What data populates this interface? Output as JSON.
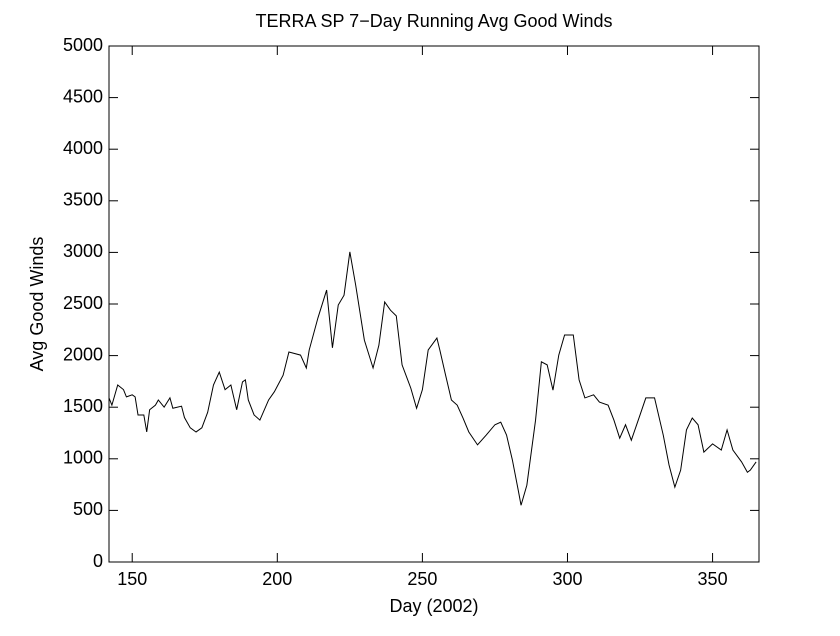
{
  "chart_data": {
    "type": "line",
    "title": "TERRA SP 7−Day Running Avg Good Winds",
    "xlabel": "Day (2002)",
    "ylabel": "Avg Good Winds",
    "x": [
      142,
      143,
      145,
      147,
      148,
      150,
      151,
      152,
      154,
      155,
      156,
      158,
      159,
      161,
      163,
      164,
      167,
      168,
      170,
      172,
      174,
      176,
      178,
      180,
      182,
      184,
      186,
      188,
      189,
      190,
      192,
      194,
      197,
      199,
      202,
      204,
      208,
      210,
      211,
      214,
      217,
      219,
      221,
      223,
      225,
      227,
      230,
      233,
      235,
      237,
      239,
      241,
      243,
      246,
      248,
      250,
      252,
      255,
      256,
      258,
      260,
      262,
      264,
      266,
      269,
      272,
      275,
      277,
      279,
      281,
      283,
      284,
      286,
      289,
      291,
      293,
      295,
      297,
      299,
      302,
      304,
      306,
      309,
      311,
      314,
      316,
      318,
      320,
      322,
      325,
      327,
      330,
      333,
      335,
      337,
      339,
      341,
      343,
      345,
      347,
      350,
      353,
      355,
      357,
      360,
      362,
      363,
      365
    ],
    "series": [
      {
        "name": "Avg Good Winds",
        "color": "#000000",
        "values": [
          1590,
          1520,
          1715,
          1670,
          1600,
          1620,
          1600,
          1425,
          1425,
          1260,
          1475,
          1520,
          1570,
          1500,
          1590,
          1490,
          1510,
          1400,
          1300,
          1260,
          1300,
          1450,
          1715,
          1840,
          1670,
          1715,
          1475,
          1745,
          1765,
          1570,
          1425,
          1375,
          1570,
          1650,
          1810,
          2035,
          2005,
          1880,
          2055,
          2365,
          2635,
          2075,
          2490,
          2585,
          3005,
          2685,
          2150,
          1880,
          2100,
          2520,
          2440,
          2385,
          1910,
          1685,
          1490,
          1670,
          2055,
          2170,
          2055,
          1810,
          1570,
          1520,
          1395,
          1260,
          1135,
          1230,
          1330,
          1355,
          1230,
          990,
          700,
          550,
          745,
          1375,
          1940,
          1910,
          1665,
          2005,
          2200,
          2200,
          1765,
          1590,
          1620,
          1550,
          1520,
          1375,
          1200,
          1330,
          1180,
          1425,
          1590,
          1590,
          1230,
          940,
          725,
          890,
          1280,
          1395,
          1330,
          1065,
          1145,
          1085,
          1280,
          1085,
          970,
          870,
          890,
          970
        ]
      }
    ],
    "xlim": [
      142,
      366
    ],
    "xticks": [
      150,
      200,
      250,
      300,
      350
    ],
    "ylim": [
      0,
      5000
    ],
    "yticks": [
      0,
      500,
      1000,
      1500,
      2000,
      2500,
      3000,
      3500,
      4000,
      4500,
      5000
    ]
  }
}
